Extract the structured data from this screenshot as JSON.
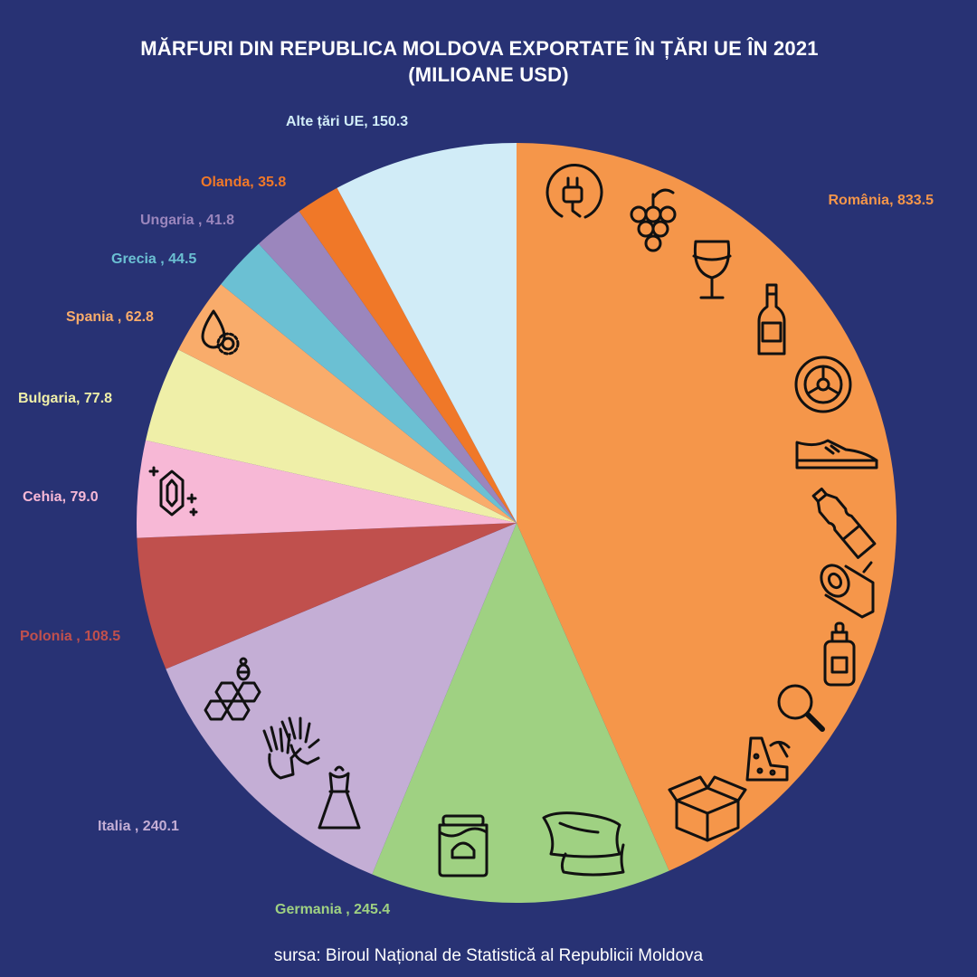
{
  "chart_data": {
    "type": "pie",
    "title_line1": "MĂRFURI DIN REPUBLICA MOLDOVA EXPORTATE ÎN ȚĂRI UE ÎN 2021",
    "title_line2": "(MILIOANE USD)",
    "source": "sursa: Biroul Național de Statistică al Republicii Moldova",
    "start": "12 o'clock",
    "direction": "clockwise",
    "slices": [
      {
        "label": "România, 833.5",
        "name": "România",
        "value": 833.5,
        "color": "#F5964A"
      },
      {
        "label": "Germania , 245.4",
        "name": "Germania",
        "value": 245.4,
        "color": "#9FD182"
      },
      {
        "label": "Italia , 240.1",
        "name": "Italia",
        "value": 240.1,
        "color": "#C4AED5"
      },
      {
        "label": "Polonia , 108.5",
        "name": "Polonia",
        "value": 108.5,
        "color": "#C0504D"
      },
      {
        "label": "Cehia, 79.0",
        "name": "Cehia",
        "value": 79.0,
        "color": "#F7B8D6"
      },
      {
        "label": "Bulgaria, 77.8",
        "name": "Bulgaria",
        "value": 77.8,
        "color": "#EFEFA8"
      },
      {
        "label": "Spania , 62.8",
        "name": "Spania",
        "value": 62.8,
        "color": "#F9AC6B"
      },
      {
        "label": "Grecia , 44.5",
        "name": "Grecia",
        "value": 44.5,
        "color": "#6BC0D3"
      },
      {
        "label": "Ungaria , 41.8",
        "name": "Ungaria",
        "value": 41.8,
        "color": "#9B86BD"
      },
      {
        "label": "Olanda, 35.8",
        "name": "Olanda",
        "value": 35.8,
        "color": "#F07828"
      },
      {
        "label": "Alte țări UE, 150.3",
        "name": "Alte țări UE",
        "value": 150.3,
        "color": "#D1ECF7"
      }
    ]
  },
  "icons": [
    "plug-icon",
    "grapes-icon",
    "wine-glass-icon",
    "bottle-icon",
    "tire-icon",
    "shoe-icon",
    "plastic-bottle-icon",
    "log-icon",
    "dropper-bottle-icon",
    "magnifier-icon",
    "ore-icon",
    "box-icon",
    "pillows-icon",
    "jar-icon",
    "dress-icon",
    "gloves-icon",
    "honeycomb-bee-icon",
    "gem-icon",
    "oil-drop-sunflower-icon"
  ]
}
